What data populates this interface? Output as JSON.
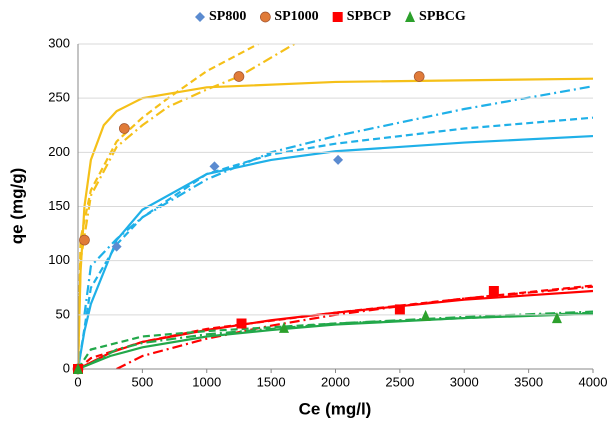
{
  "chart_data": {
    "type": "scatter",
    "x_label": "Ce (mg/l)",
    "y_label": "qe (mg/g)",
    "xlim": [
      0,
      4000
    ],
    "xticks": [
      0,
      500,
      1000,
      1500,
      2000,
      2500,
      3000,
      3500,
      4000
    ],
    "ylim": [
      0,
      300
    ],
    "yticks": [
      0,
      50,
      100,
      150,
      200,
      250,
      300
    ],
    "grid": true,
    "legend": "top",
    "series": [
      {
        "name": "SP800",
        "color": "#5b8bd0",
        "marker": "diamond",
        "x": [
          0,
          300,
          1060,
          2020
        ],
        "values": [
          0,
          113,
          187,
          193
        ]
      },
      {
        "name": "SP1000",
        "color": "#e07b39",
        "marker": "circle",
        "x": [
          0,
          50,
          360,
          1250,
          2650
        ],
        "values": [
          0,
          119,
          222,
          270,
          270
        ]
      },
      {
        "name": "SPBCP",
        "color": "#ff0000",
        "marker": "square",
        "x": [
          0,
          1270,
          2500,
          3230
        ],
        "values": [
          0,
          42,
          55,
          72
        ]
      },
      {
        "name": "SPBCG",
        "color": "#2ca02c",
        "marker": "triangle",
        "x": [
          0,
          1600,
          2700,
          3720
        ],
        "values": [
          0,
          38,
          49,
          47
        ]
      }
    ],
    "fits": [
      {
        "color": "#1fb0e8",
        "dash": "solid",
        "x": [
          0,
          50,
          100,
          300,
          500,
          1000,
          1500,
          2000,
          3000,
          4000
        ],
        "values": [
          0,
          35,
          60,
          119,
          147,
          180,
          193,
          201,
          209,
          215
        ]
      },
      {
        "color": "#1fb0e8",
        "dash": "dashed",
        "x": [
          0,
          100,
          300,
          500,
          1000,
          1500,
          2000,
          3000,
          4000
        ],
        "values": [
          0,
          75,
          115,
          140,
          180,
          198,
          208,
          222,
          232
        ]
      },
      {
        "color": "#1fb0e8",
        "dash": "dashdot",
        "x": [
          50,
          100,
          300,
          500,
          1000,
          1500,
          2000,
          3000,
          4000
        ],
        "values": [
          50,
          95,
          120,
          140,
          175,
          200,
          215,
          240,
          261
        ]
      },
      {
        "color": "#f5c018",
        "dash": "solid",
        "x": [
          0,
          20,
          50,
          100,
          200,
          300,
          500,
          1000,
          2000,
          4000
        ],
        "values": [
          0,
          90,
          150,
          193,
          225,
          238,
          250,
          260,
          265,
          268
        ]
      },
      {
        "color": "#f5c018",
        "dash": "dashed",
        "x": [
          0,
          20,
          100,
          300,
          500,
          700,
          1000,
          1400
        ],
        "values": [
          0,
          120,
          165,
          210,
          232,
          250,
          275,
          300
        ]
      },
      {
        "color": "#f5c018",
        "dash": "dashdot",
        "x": [
          0,
          20,
          100,
          300,
          500,
          700,
          1000,
          1250,
          1680
        ],
        "values": [
          0,
          100,
          160,
          205,
          225,
          242,
          258,
          270,
          300
        ]
      },
      {
        "color": "#ff0000",
        "dash": "solid",
        "x": [
          0,
          250,
          500,
          1000,
          1500,
          2000,
          2500,
          3000,
          3500,
          4000
        ],
        "values": [
          0,
          15,
          25,
          36,
          45,
          52,
          58,
          64,
          68,
          72
        ]
      },
      {
        "color": "#ff0000",
        "dash": "dashed",
        "x": [
          0,
          100,
          500,
          1000,
          2000,
          3000,
          4000
        ],
        "values": [
          0,
          10,
          25,
          37,
          52,
          65,
          77
        ]
      },
      {
        "color": "#ff0000",
        "dash": "dashdot",
        "x": [
          300,
          500,
          1000,
          1500,
          2000,
          2500,
          3000,
          4000
        ],
        "values": [
          0,
          12,
          28,
          40,
          50,
          58,
          65,
          76
        ]
      },
      {
        "color": "#22a84a",
        "dash": "solid",
        "x": [
          0,
          250,
          500,
          1000,
          1500,
          2000,
          3000,
          4000
        ],
        "values": [
          0,
          12,
          20,
          30,
          36,
          41,
          47,
          51
        ]
      },
      {
        "color": "#22a84a",
        "dash": "dashed",
        "x": [
          0,
          100,
          500,
          1000,
          2000,
          3000,
          4000
        ],
        "values": [
          0,
          18,
          30,
          35,
          42,
          47,
          52
        ]
      },
      {
        "color": "#22a84a",
        "dash": "dashdot",
        "x": [
          100,
          300,
          500,
          1000,
          2000,
          3000,
          4000
        ],
        "values": [
          5,
          18,
          24,
          32,
          42,
          48,
          53
        ]
      }
    ]
  }
}
